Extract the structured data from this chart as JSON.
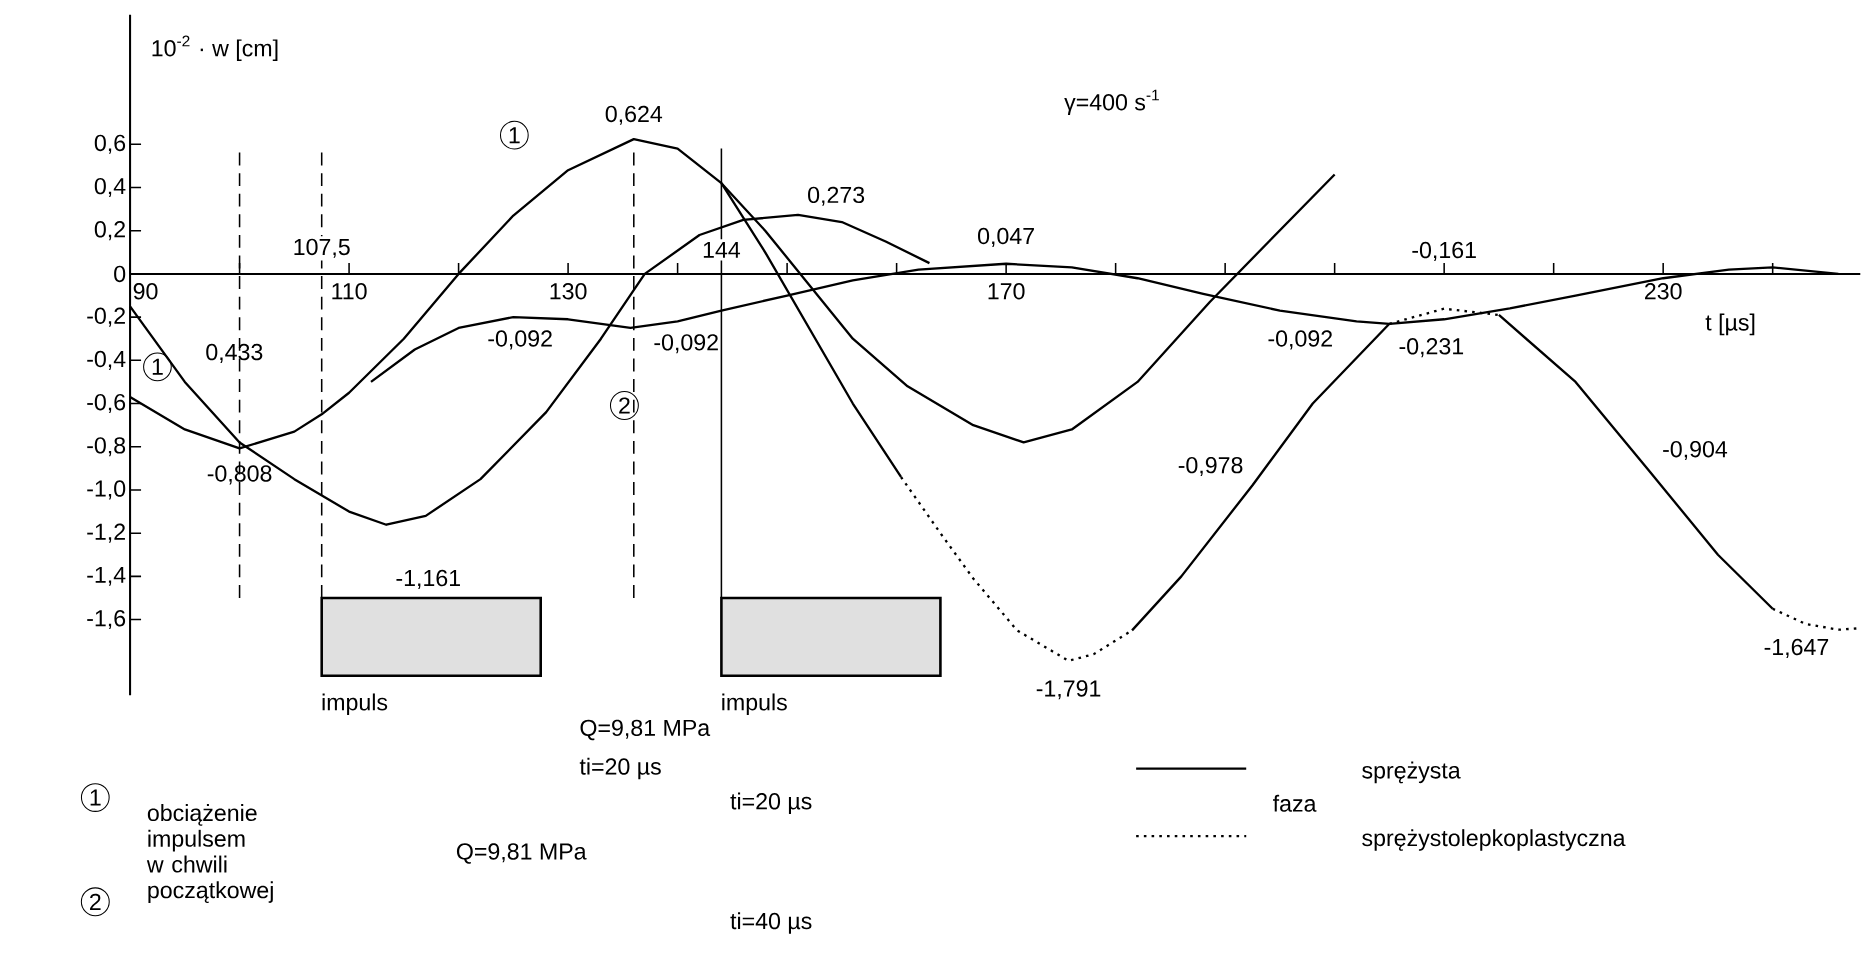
{
  "chart_data": {
    "type": "line",
    "xlabel": "t [µs]",
    "ylabel": "10$^{-2}$ · w [cm]",
    "legend": "bottom right",
    "legend_title": "faza",
    "xlim": [
      90,
      248
    ],
    "ylim": [
      -1.95,
      1.2
    ],
    "xticks": [
      90,
      {
        "value": 100,
        "label": null
      },
      110,
      {
        "value": 120,
        "label": null
      },
      130,
      {
        "value": 140,
        "label": null
      },
      {
        "value": 150,
        "label": null
      },
      {
        "value": 160,
        "label": null
      },
      170,
      {
        "value": 180,
        "label": null
      },
      {
        "value": 190,
        "label": null
      },
      {
        "value": 200,
        "label": null
      },
      {
        "value": 210,
        "label": null
      },
      {
        "value": 220,
        "label": null
      },
      230,
      {
        "value": 240,
        "label": null
      }
    ],
    "yticks": [
      {
        "value": 0.6,
        "label": "0,6"
      },
      {
        "value": 0.4,
        "label": "0,4"
      },
      {
        "value": 0.2,
        "label": "0,2"
      },
      0,
      {
        "value": -0.2,
        "label": "-0,2"
      },
      {
        "value": -0.4,
        "label": "-0,4"
      },
      {
        "value": -0.6,
        "label": "-0,6"
      },
      {
        "value": -0.8,
        "label": "-0,8"
      },
      {
        "value": -1.0,
        "label": "-1,0"
      },
      {
        "value": -1.2,
        "label": "-1,2"
      },
      {
        "value": -1.4,
        "label": "-1,4"
      },
      {
        "value": -1.6,
        "label": "-1,6"
      }
    ],
    "series": [
      {
        "name": "sprężysta",
        "color": "#000000",
        "line_style": "solid",
        "x": [
          90,
          95,
          100,
          105,
          107.5,
          110,
          115,
          120,
          125,
          130,
          136,
          140,
          144,
          148,
          152,
          156,
          160.4
        ],
        "values": [
          -0.57,
          -0.72,
          -0.808,
          -0.73,
          -0.65,
          -0.55,
          -0.3,
          0,
          0.27,
          0.48,
          0.624,
          0.58,
          0.42,
          0.1,
          -0.25,
          -0.6,
          -0.94
        ]
      },
      {
        "name": "sprężystolepkoplastyczna",
        "color": "#000000",
        "line_style": "dotted",
        "x": [
          160.4,
          164,
          167,
          171,
          175.7,
          178,
          181.5
        ],
        "values": [
          -0.94,
          -1.2,
          -1.41,
          -1.65,
          -1.791,
          -1.76,
          -1.65
        ]
      },
      {
        "color": "#000000",
        "line_style": "solid",
        "x": [
          181.5,
          186,
          192.5,
          198,
          205
        ],
        "values": [
          -1.65,
          -1.4,
          -0.978,
          -0.6,
          -0.231
        ]
      },
      {
        "color": "#000000",
        "line_style": "dotted",
        "x": [
          205,
          210,
          215
        ],
        "values": [
          -0.231,
          -0.161,
          -0.19
        ]
      },
      {
        "color": "#000000",
        "line_style": "solid",
        "x": [
          215,
          222,
          228.6,
          235,
          240
        ],
        "values": [
          -0.19,
          -0.5,
          -0.904,
          -1.3,
          -1.55
        ]
      },
      {
        "color": "#000000",
        "line_style": "dotted",
        "x": [
          240,
          243,
          246,
          248
        ],
        "values": [
          -1.55,
          -1.62,
          -1.647,
          -1.64
        ]
      },
      {
        "color": "#000000",
        "line_style": "solid",
        "x": [
          144,
          148,
          152,
          156,
          161,
          167,
          171.6,
          176,
          182,
          188.6,
          194,
          200
        ],
        "values": [
          0.42,
          0.2,
          -0.05,
          -0.3,
          -0.52,
          -0.7,
          -0.78,
          -0.72,
          -0.5,
          -0.13,
          0.15,
          0.46
        ]
      },
      {
        "color": "#000000",
        "line_style": "solid",
        "x": [
          90,
          95,
          100,
          105,
          110,
          113.4,
          117,
          122,
          128,
          133,
          137,
          142,
          146,
          151,
          155,
          159,
          163
        ],
        "values": [
          -0.15,
          -0.5,
          -0.78,
          -0.95,
          -1.1,
          -1.161,
          -1.12,
          -0.95,
          -0.64,
          -0.3,
          0,
          0.18,
          0.25,
          0.273,
          0.24,
          0.15,
          0.05
        ]
      },
      {
        "color": "#000000",
        "line_style": "solid",
        "x": [
          112,
          116,
          120,
          125,
          130,
          135.7,
          140,
          144,
          150,
          156,
          162,
          170,
          176,
          182,
          188,
          195,
          202,
          205,
          210,
          216,
          222,
          230,
          236,
          240,
          246
        ],
        "values": [
          -0.5,
          -0.35,
          -0.25,
          -0.2,
          -0.21,
          -0.25,
          -0.22,
          -0.17,
          -0.1,
          -0.03,
          0.02,
          0.047,
          0.03,
          -0.02,
          -0.092,
          -0.17,
          -0.22,
          -0.231,
          -0.21,
          -0.16,
          -0.1,
          -0.02,
          0.02,
          0.03,
          0.0
        ]
      }
    ],
    "ref_lines": [
      {
        "axis": "x",
        "value": 100,
        "label": null,
        "line_style": "dashed"
      },
      {
        "axis": "x",
        "value": 107.5,
        "label": "107,5",
        "line_style": "dashed"
      },
      {
        "axis": "x",
        "value": 136,
        "label": null,
        "line_style": "dashed"
      },
      {
        "axis": "x",
        "value": 144,
        "label": "144",
        "line_style": "solid"
      }
    ],
    "bands": [
      {
        "axis": "x",
        "from": 107.5,
        "to": 127.5,
        "label": "impuls"
      },
      {
        "axis": "x",
        "from": 144,
        "to": 164,
        "label": "impuls"
      }
    ],
    "annotations": [
      {
        "text": "0,624",
        "x": 136,
        "y": 0.624
      },
      {
        "text": "0,273",
        "x": 151,
        "y": 0.273
      },
      "0,433",
      {
        "text": "-0,808",
        "x": 100,
        "y": -0.808
      },
      {
        "text": "-1,161",
        "x": 113.4,
        "y": -1.161
      },
      "-0,092",
      "-0,092",
      {
        "text": "0,047",
        "x": 170,
        "y": 0.047
      },
      "-0,092",
      {
        "text": "-0,161",
        "x": 210,
        "y": -0.161
      },
      {
        "text": "-0,231",
        "x": 205,
        "y": -0.231
      },
      {
        "text": "-0,978",
        "x": 192.5,
        "y": -0.978
      },
      {
        "text": "-1,791",
        "x": 175.7,
        "y": -1.791
      },
      {
        "text": "-0,904",
        "x": 228.6,
        "y": -0.904
      },
      {
        "text": "-1,647",
        "x": 246,
        "y": -1.647
      },
      "1",
      {
        "text": "1",
        "x": 92.5,
        "y": -0.43
      },
      "2",
      "γ=400 s$^{-1}$",
      "Q=9,81 MPa",
      "ti=20 µs",
      "1",
      "obciążenie impulsem w chwili początkowej",
      "2",
      "Q=9,81 MPa",
      "ti=20 µs",
      "ti=40 µs"
    ]
  }
}
